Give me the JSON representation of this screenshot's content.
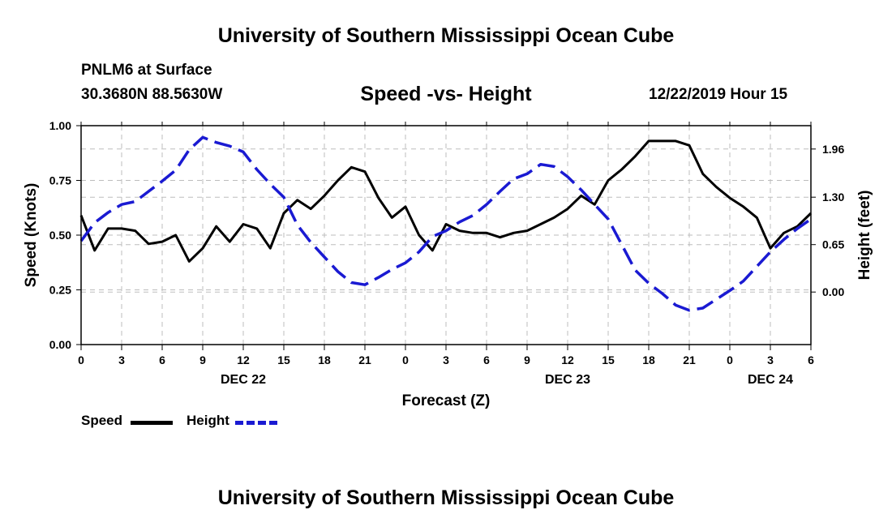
{
  "page": {
    "title_top": "University of Southern Mississippi Ocean Cube",
    "title_bottom": "University of Southern Mississippi Ocean Cube",
    "station": "PNLM6 at Surface",
    "coords": "30.3680N 88.5630W",
    "date": "12/22/2019 Hour 15"
  },
  "legend": {
    "speed_label": "Speed",
    "height_label": "Height"
  },
  "colors": {
    "speed": "#000000",
    "height": "#1a1ad2",
    "grid": "#bdbdbd"
  },
  "chart_data": {
    "type": "line",
    "title": "Speed -vs- Height",
    "xlabel": "Forecast (Z)",
    "ylabel": "Speed (Knots)",
    "y2label": "Height (feet)",
    "xlim": [
      0,
      54
    ],
    "ylim": [
      0,
      1.0
    ],
    "y2lim": [
      -0.72,
      2.28
    ],
    "x_ticks": [
      0,
      3,
      6,
      9,
      12,
      15,
      18,
      21,
      24,
      27,
      30,
      33,
      36,
      39,
      42,
      45,
      48,
      51,
      54
    ],
    "x_tick_labels": [
      "0",
      "3",
      "6",
      "9",
      "12",
      "15",
      "18",
      "21",
      "0",
      "3",
      "6",
      "9",
      "12",
      "15",
      "18",
      "21",
      "0",
      "3",
      "6"
    ],
    "day_labels": [
      {
        "x": 12,
        "label": "DEC 22"
      },
      {
        "x": 36,
        "label": "DEC 23"
      },
      {
        "x": 51,
        "label": "DEC 24"
      }
    ],
    "y_ticks": [
      0,
      0.25,
      0.5,
      0.75,
      1.0
    ],
    "y_tick_labels": [
      "0.00",
      "0.25",
      "0.50",
      "0.75",
      "1.00"
    ],
    "y2_ticks": [
      0.0,
      0.65,
      1.3,
      1.96
    ],
    "y2_tick_labels": [
      "0.00",
      "0.65",
      "1.30",
      "1.96"
    ],
    "grid": true,
    "series": [
      {
        "name": "Speed",
        "axis": "left",
        "style": "solid",
        "x": [
          0,
          1,
          2,
          3,
          4,
          5,
          6,
          7,
          8,
          9,
          10,
          11,
          12,
          13,
          14,
          15,
          16,
          17,
          18,
          19,
          20,
          21,
          22,
          23,
          24,
          25,
          26,
          27,
          28,
          29,
          30,
          31,
          32,
          33,
          34,
          35,
          36,
          37,
          38,
          39,
          40,
          41,
          42,
          43,
          44,
          45,
          46,
          47,
          48,
          49,
          50,
          51,
          52,
          53,
          54
        ],
        "values": [
          0.59,
          0.43,
          0.53,
          0.53,
          0.52,
          0.46,
          0.47,
          0.5,
          0.38,
          0.44,
          0.54,
          0.47,
          0.55,
          0.53,
          0.44,
          0.6,
          0.66,
          0.62,
          0.68,
          0.75,
          0.81,
          0.79,
          0.67,
          0.58,
          0.63,
          0.5,
          0.43,
          0.55,
          0.52,
          0.51,
          0.51,
          0.49,
          0.51,
          0.52,
          0.55,
          0.58,
          0.62,
          0.68,
          0.64,
          0.75,
          0.8,
          0.86,
          0.93,
          0.93,
          0.93,
          0.91,
          0.78,
          0.72,
          0.67,
          0.63,
          0.58,
          0.44,
          0.51,
          0.54,
          0.6
        ]
      },
      {
        "name": "Height",
        "axis": "right",
        "style": "dashed",
        "x": [
          0,
          1,
          2,
          3,
          4,
          5,
          6,
          7,
          8,
          9,
          10,
          11,
          12,
          13,
          14,
          15,
          16,
          17,
          18,
          19,
          20,
          21,
          22,
          23,
          24,
          25,
          26,
          27,
          28,
          29,
          30,
          31,
          32,
          33,
          34,
          35,
          36,
          37,
          38,
          39,
          40,
          41,
          42,
          43,
          44,
          45,
          46,
          47,
          48,
          49,
          50,
          51,
          52,
          53,
          54
        ],
        "values": [
          0.7,
          0.95,
          1.09,
          1.2,
          1.24,
          1.38,
          1.52,
          1.67,
          1.95,
          2.12,
          2.05,
          2.0,
          1.92,
          1.68,
          1.48,
          1.3,
          0.92,
          0.68,
          0.48,
          0.28,
          0.13,
          0.1,
          0.2,
          0.31,
          0.4,
          0.55,
          0.76,
          0.84,
          0.96,
          1.05,
          1.2,
          1.38,
          1.55,
          1.62,
          1.75,
          1.72,
          1.58,
          1.4,
          1.2,
          1.0,
          0.65,
          0.3,
          0.12,
          -0.02,
          -0.18,
          -0.25,
          -0.22,
          -0.1,
          0.02,
          0.15,
          0.35,
          0.55,
          0.72,
          0.87,
          1.0
        ]
      }
    ]
  }
}
